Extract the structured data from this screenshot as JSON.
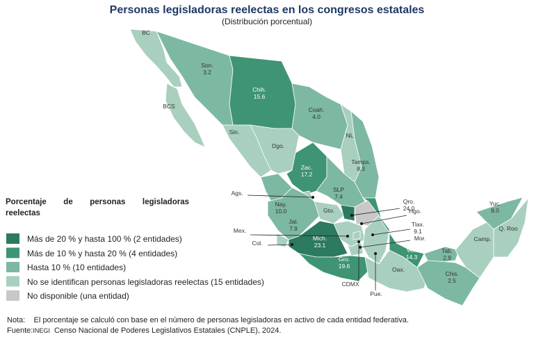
{
  "header": {
    "title": "Personas legisladoras reelectas en los congresos estatales",
    "subtitle": "(Distribución porcentual)"
  },
  "legend": {
    "title": "Porcentaje de personas legisladoras reelectas",
    "items": [
      {
        "label": "Más de 20 % y hasta 100 % (2 entidades)",
        "color": "#2c7a5f"
      },
      {
        "label": "Más de 10 % y hasta 20 % (4 entidades)",
        "color": "#3e9473"
      },
      {
        "label": "Hasta 10 % (10 entidades)",
        "color": "#7db8a2"
      },
      {
        "label": "No se identifican personas legisladoras reelectas (15 entidades)",
        "color": "#a9cfbf"
      },
      {
        "label": "No disponible (una entidad)",
        "color": "#c8c8c8"
      }
    ]
  },
  "map": {
    "states": [
      {
        "name": "BC",
        "color": "#a9cfbf"
      },
      {
        "name": "BCS",
        "color": "#a9cfbf"
      },
      {
        "name": "Son.",
        "value": "3.2",
        "color": "#7db8a2"
      },
      {
        "name": "Chih.",
        "value": "15.6",
        "color": "#3e9473"
      },
      {
        "name": "Coah.",
        "value": "4.0",
        "color": "#7db8a2"
      },
      {
        "name": "Sin.",
        "color": "#a9cfbf"
      },
      {
        "name": "Dgo.",
        "color": "#a9cfbf"
      },
      {
        "name": "NL",
        "color": "#a9cfbf"
      },
      {
        "name": "Tamps.",
        "value": "8.3",
        "color": "#7db8a2"
      },
      {
        "name": "Zac.",
        "value": "17.2",
        "color": "#3e9473"
      },
      {
        "name": "SLP",
        "value": "7.4",
        "color": "#7db8a2"
      },
      {
        "name": "Ags.",
        "color": "#a9cfbf"
      },
      {
        "name": "Nay.",
        "value": "10.0",
        "color": "#7db8a2"
      },
      {
        "name": "Jal.",
        "value": "7.9",
        "color": "#7db8a2"
      },
      {
        "name": "Gto.",
        "color": "#a9cfbf"
      },
      {
        "name": "Qro.",
        "value": "24.0",
        "color": "#2c7a5f"
      },
      {
        "name": "Hgo.",
        "color": "#c8c8c8"
      },
      {
        "name": "Tlax.",
        "value": "9.1",
        "color": "#7db8a2"
      },
      {
        "name": "Mor.",
        "color": "#a9cfbf"
      },
      {
        "name": "Mex.",
        "color": "#a9cfbf"
      },
      {
        "name": "Col.",
        "color": "#a9cfbf"
      },
      {
        "name": "Mich.",
        "value": "23.1",
        "color": "#2c7a5f"
      },
      {
        "name": "CDMX",
        "color": "#a9cfbf"
      },
      {
        "name": "Pue.",
        "color": "#a9cfbf"
      },
      {
        "name": "Gro.",
        "value": "19.6",
        "color": "#3e9473"
      },
      {
        "name": "Oax.",
        "color": "#a9cfbf"
      },
      {
        "name": "Ver.",
        "value": "14.3",
        "color": "#3e9473"
      },
      {
        "name": "Tab.",
        "value": "2.9",
        "color": "#7db8a2"
      },
      {
        "name": "Chis.",
        "value": "2.5",
        "color": "#7db8a2"
      },
      {
        "name": "Camp.",
        "color": "#a9cfbf"
      },
      {
        "name": "Yuc.",
        "value": "8.0",
        "color": "#7db8a2"
      },
      {
        "name": "Q. Roo",
        "color": "#a9cfbf"
      }
    ]
  },
  "footer": {
    "note_label": "Nota:",
    "note": "El porcentaje se calculó con base en el número de personas legisladoras en activo de cada entidad federativa.",
    "source_label": "Fuente:",
    "source_org": "INEGI",
    "source": "Censo Nacional de Poderes Legislativos Estatales (CNPLE), 2024."
  }
}
